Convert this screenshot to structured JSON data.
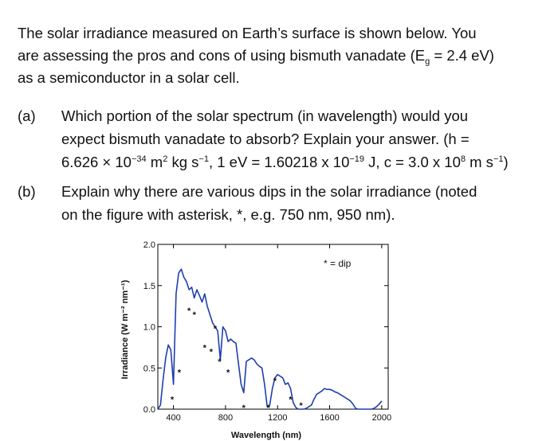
{
  "intro": {
    "line1": "The solar irradiance measured on Earth’s surface is shown below.  You",
    "line2_a": "are assessing the pros and cons of using bismuth vanadate (E",
    "line2_sub": "g",
    "line2_b": " = 2.4 eV)",
    "line3": "as a semiconductor in a solar cell."
  },
  "question_a": {
    "label": "(a)",
    "line1": "Which portion of the solar spectrum (in wavelength) would you",
    "line2": "expect bismuth vanadate to absorb?  Explain your answer.  (h =",
    "line3_p1": "6.626 × 10",
    "line3_e1": "−34",
    "line3_p2": " m",
    "line3_e2": "2",
    "line3_p3": " kg s",
    "line3_e3": "−1",
    "line3_p4": ", 1 eV = 1.60218 x 10",
    "line3_e4": "−19",
    "line3_p5": " J, c = 3.0 x 10",
    "line3_e5": "8",
    "line3_p6": " m s",
    "line3_e6": "−1",
    "line3_p7": ")"
  },
  "question_b": {
    "label": "(b)",
    "line1": "Explain why there are various dips in the solar irradiance (noted",
    "line2": "on the figure with asterisk, *, e.g. 750 nm, 950 nm)."
  },
  "chart_data": {
    "type": "line",
    "xlabel": "Wavelength (nm)",
    "ylabel": "Irradiance (W m⁻² nm⁻¹)",
    "xlim": [
      280,
      2050
    ],
    "ylim": [
      0,
      2.0
    ],
    "x_ticks": [
      400,
      800,
      1200,
      1600,
      2000
    ],
    "y_ticks": [
      0.0,
      0.5,
      1.0,
      1.5,
      2.0
    ],
    "y_tick_labels": [
      "0.0",
      "0.5",
      "1.0",
      "1.5",
      "2.0"
    ],
    "legend": "* = dip",
    "legend_position": "top-right",
    "line_color": "#1f3fae",
    "series": [
      {
        "x": [
          280,
          300,
          320,
          340,
          360,
          380,
          400,
          420,
          440,
          460,
          480,
          500,
          520,
          540,
          560,
          580,
          600,
          620,
          640,
          660,
          680,
          700,
          720,
          740,
          760,
          780,
          800,
          820,
          840,
          860,
          880,
          900,
          920,
          940,
          960,
          980,
          1000,
          1020,
          1040,
          1060,
          1080,
          1100,
          1120,
          1140,
          1160,
          1180,
          1200,
          1220,
          1240,
          1260,
          1280,
          1300,
          1320,
          1340,
          1360,
          1380,
          1400,
          1420,
          1440,
          1460,
          1480,
          1500,
          1520,
          1540,
          1560,
          1580,
          1600,
          1620,
          1640,
          1660,
          1680,
          1700,
          1720,
          1740,
          1760,
          1780,
          1800,
          1820,
          1840,
          1860,
          1880,
          1900,
          1920,
          1940,
          1960,
          1980,
          2000
        ],
        "y": [
          0.0,
          0.05,
          0.35,
          0.62,
          0.78,
          0.72,
          0.3,
          1.4,
          1.65,
          1.7,
          1.6,
          1.55,
          1.45,
          1.48,
          1.35,
          1.45,
          1.38,
          1.3,
          1.4,
          1.25,
          1.15,
          1.05,
          1.0,
          0.95,
          0.6,
          1.0,
          0.95,
          0.82,
          0.85,
          0.82,
          0.8,
          0.55,
          0.3,
          0.2,
          0.58,
          0.6,
          0.62,
          0.6,
          0.55,
          0.52,
          0.5,
          0.3,
          0.03,
          0.05,
          0.25,
          0.38,
          0.42,
          0.4,
          0.38,
          0.3,
          0.32,
          0.25,
          0.08,
          0.02,
          0.0,
          0.0,
          0.0,
          0.01,
          0.03,
          0.05,
          0.12,
          0.18,
          0.2,
          0.22,
          0.25,
          0.24,
          0.24,
          0.23,
          0.21,
          0.2,
          0.18,
          0.16,
          0.14,
          0.12,
          0.1,
          0.06,
          0.01,
          0.0,
          0.0,
          0.0,
          0.0,
          0.0,
          0.0,
          0.01,
          0.03,
          0.06,
          0.1
        ]
      }
    ],
    "dips": [
      {
        "x": 390,
        "y": 0.12
      },
      {
        "x": 445,
        "y": 0.45
      },
      {
        "x": 520,
        "y": 1.2
      },
      {
        "x": 560,
        "y": 1.15
      },
      {
        "x": 640,
        "y": 0.75
      },
      {
        "x": 690,
        "y": 0.7
      },
      {
        "x": 720,
        "y": 0.98
      },
      {
        "x": 755,
        "y": 0.58
      },
      {
        "x": 820,
        "y": 0.45
      },
      {
        "x": 940,
        "y": 0.02
      },
      {
        "x": 1130,
        "y": 0.02
      },
      {
        "x": 1180,
        "y": 0.35
      },
      {
        "x": 1300,
        "y": 0.12
      },
      {
        "x": 1380,
        "y": 0.05
      }
    ]
  }
}
